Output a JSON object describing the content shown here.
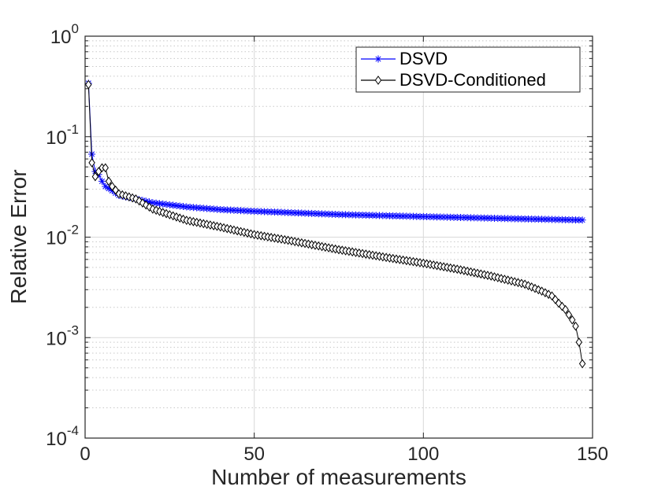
{
  "chart_data": {
    "type": "line",
    "title": "",
    "xlabel": "Number of measurements",
    "ylabel": "Relative Error",
    "xlim": [
      0,
      150
    ],
    "ylim": [
      0.0001,
      1
    ],
    "yscale": "log",
    "grid": true,
    "legend_position": "top-right",
    "x_ticks": [
      0,
      50,
      100,
      150
    ],
    "x_tick_labels": [
      "0",
      "50",
      "100",
      "150"
    ],
    "y_ticks": [
      {
        "base": "10",
        "exp": "0",
        "value": 1
      },
      {
        "base": "10",
        "exp": "-1",
        "value": 0.1
      },
      {
        "base": "10",
        "exp": "-2",
        "value": 0.01
      },
      {
        "base": "10",
        "exp": "-3",
        "value": 0.001
      },
      {
        "base": "10",
        "exp": "-4",
        "value": 0.0001
      }
    ],
    "series": [
      {
        "name": "DSVD",
        "color": "#0000ff",
        "marker": "asterisk",
        "anchors": [
          [
            1,
            0.34
          ],
          [
            2,
            0.067
          ],
          [
            3,
            0.045
          ],
          [
            4,
            0.042
          ],
          [
            5,
            0.036
          ],
          [
            6,
            0.032
          ],
          [
            8,
            0.029
          ],
          [
            10,
            0.026
          ],
          [
            15,
            0.024
          ],
          [
            20,
            0.022
          ],
          [
            30,
            0.02
          ],
          [
            40,
            0.0188
          ],
          [
            50,
            0.0181
          ],
          [
            75,
            0.0168
          ],
          [
            100,
            0.016
          ],
          [
            125,
            0.0153
          ],
          [
            147,
            0.0148
          ]
        ]
      },
      {
        "name": "DSVD-Conditioned",
        "color": "#000000",
        "marker": "diamond",
        "anchors": [
          [
            1,
            0.33
          ],
          [
            2,
            0.055
          ],
          [
            3,
            0.04
          ],
          [
            4,
            0.045
          ],
          [
            5,
            0.049
          ],
          [
            6,
            0.049
          ],
          [
            7,
            0.036
          ],
          [
            8,
            0.032
          ],
          [
            10,
            0.027
          ],
          [
            15,
            0.024
          ],
          [
            20,
            0.019
          ],
          [
            30,
            0.0147
          ],
          [
            40,
            0.0126
          ],
          [
            50,
            0.0106
          ],
          [
            60,
            0.0093
          ],
          [
            75,
            0.0075
          ],
          [
            90,
            0.0062
          ],
          [
            100,
            0.0055
          ],
          [
            110,
            0.0048
          ],
          [
            120,
            0.0041
          ],
          [
            130,
            0.0034
          ],
          [
            135,
            0.0029
          ],
          [
            138,
            0.0026
          ],
          [
            140,
            0.0022
          ],
          [
            142,
            0.0019
          ],
          [
            144,
            0.0015
          ],
          [
            145,
            0.0013
          ],
          [
            146,
            0.0009
          ],
          [
            147,
            0.00055
          ]
        ]
      }
    ]
  }
}
